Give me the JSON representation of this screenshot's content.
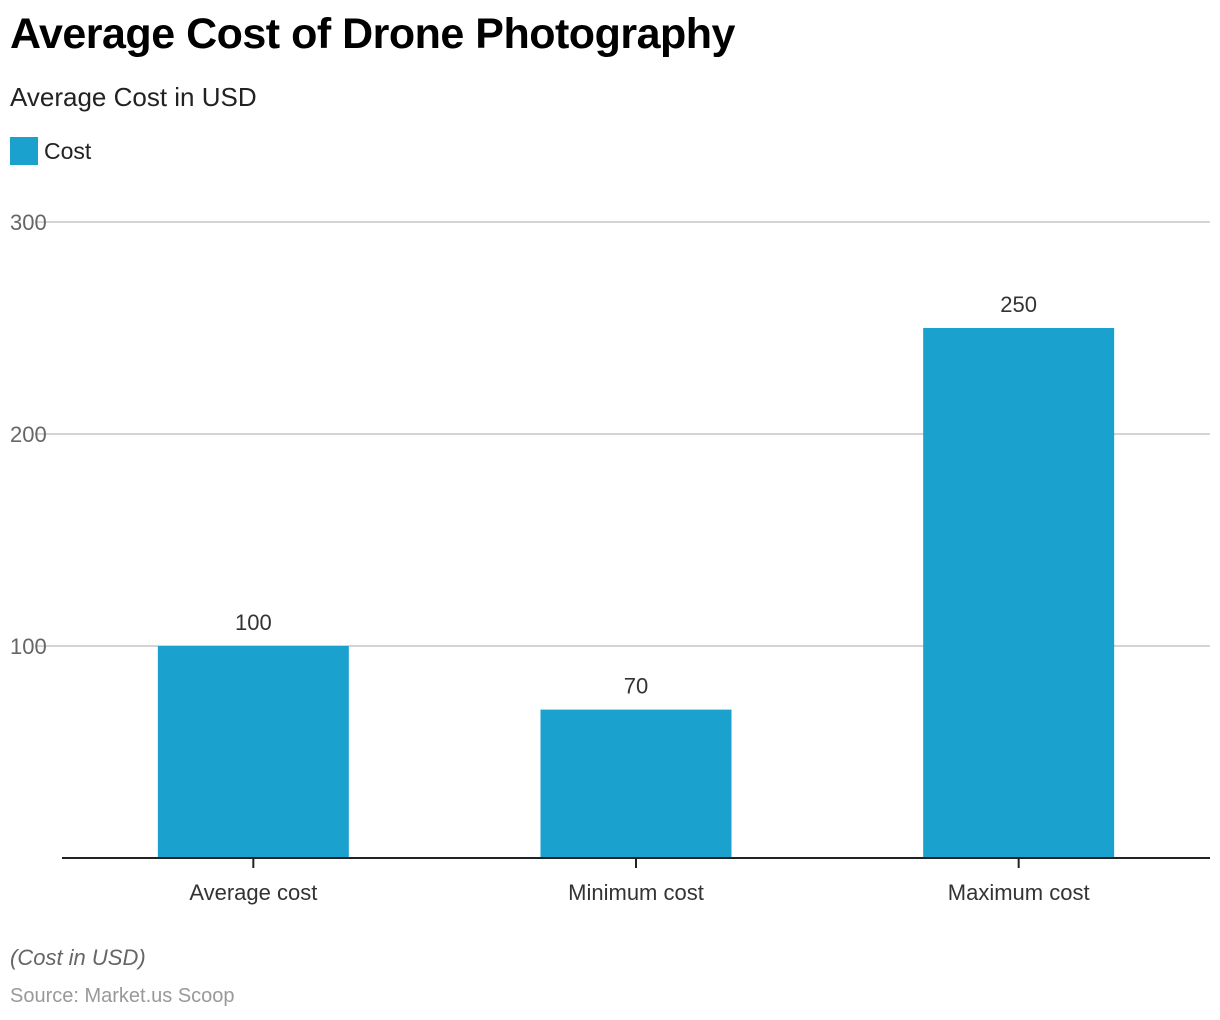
{
  "chart_data": {
    "type": "bar",
    "title": "Average Cost of Drone Photography",
    "subtitle": "Average Cost in USD",
    "categories": [
      "Average cost",
      "Minimum cost",
      "Maximum cost"
    ],
    "series": [
      {
        "name": "Cost",
        "values": [
          100,
          70,
          250
        ],
        "color": "#1aa1ce"
      }
    ],
    "xlabel": "",
    "ylabel": "",
    "ylim": [
      0,
      300
    ],
    "yticks": [
      100,
      200,
      300
    ],
    "grid": true,
    "legend_position": "top-left",
    "data_labels": [
      "100",
      "70",
      "250"
    ]
  },
  "legend": {
    "label": "Cost",
    "color": "#1aa1ce"
  },
  "footer": {
    "note": "(Cost in USD)",
    "source": "Source: Market.us Scoop"
  }
}
